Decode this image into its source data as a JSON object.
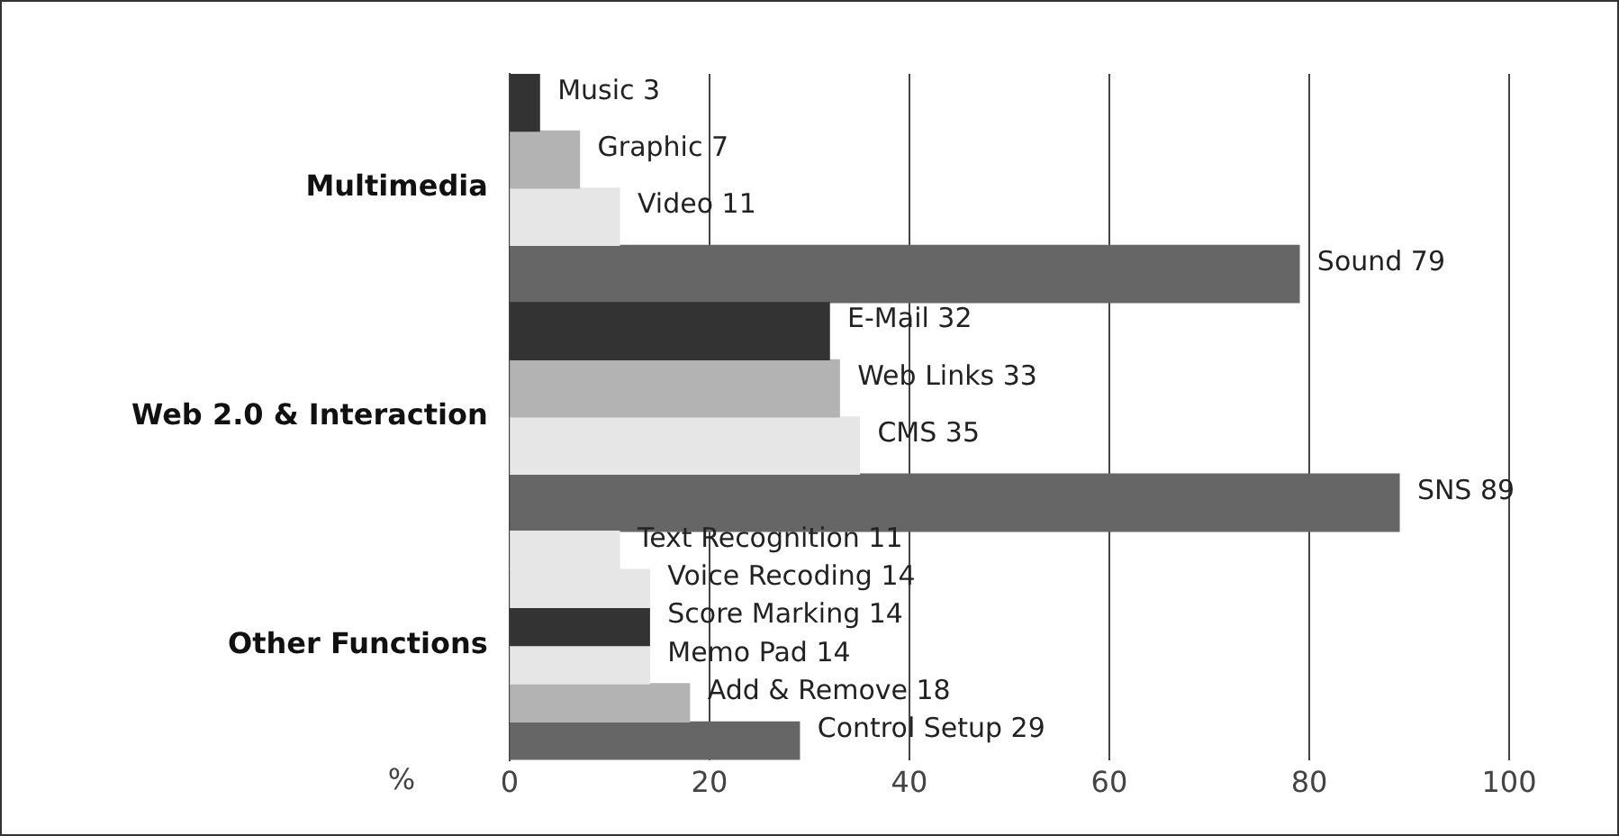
{
  "chart_data": {
    "type": "bar",
    "orientation": "horizontal",
    "xlabel": "%",
    "categories": [
      "Multimedia",
      "Web 2.0 & Interaction",
      "Other Functions"
    ],
    "series": [
      {
        "colors": [
          null,
          null,
          "#e6e6e6"
        ],
        "values": [
          null,
          null,
          11
        ],
        "value_labels": [
          null,
          null,
          "Text Recognition 11"
        ]
      },
      {
        "colors": [
          "#333333",
          "#333333",
          "#e6e6e6"
        ],
        "values": [
          3,
          32,
          14
        ],
        "value_labels": [
          "Music 3",
          "E-Mail 32",
          "Voice Recoding 14"
        ]
      },
      {
        "colors": [
          "#b3b3b3",
          "#b3b3b3",
          "#333333"
        ],
        "values": [
          7,
          33,
          14
        ],
        "value_labels": [
          "Graphic 7",
          "Web Links 33",
          "Score Marking 14"
        ]
      },
      {
        "colors": [
          "#e6e6e6",
          "#e6e6e6",
          "#e6e6e6"
        ],
        "values": [
          11,
          35,
          14
        ],
        "value_labels": [
          "Video 11",
          "CMS 35",
          "Memo Pad 14"
        ]
      },
      {
        "colors": [
          "#666666",
          "#666666",
          "#b3b3b3"
        ],
        "values": [
          79,
          89,
          18
        ],
        "value_labels": [
          "Sound 79",
          "SNS 89",
          "Add & Remove 18"
        ]
      },
      {
        "colors": [
          null,
          null,
          "#666666"
        ],
        "values": [
          null,
          null,
          29
        ],
        "value_labels": [
          null,
          null,
          "Control Setup 29"
        ]
      }
    ],
    "xlim": [
      0,
      100
    ],
    "xticks": [
      0,
      20,
      40,
      60,
      80,
      100
    ],
    "grid": "x",
    "legend": false
  }
}
